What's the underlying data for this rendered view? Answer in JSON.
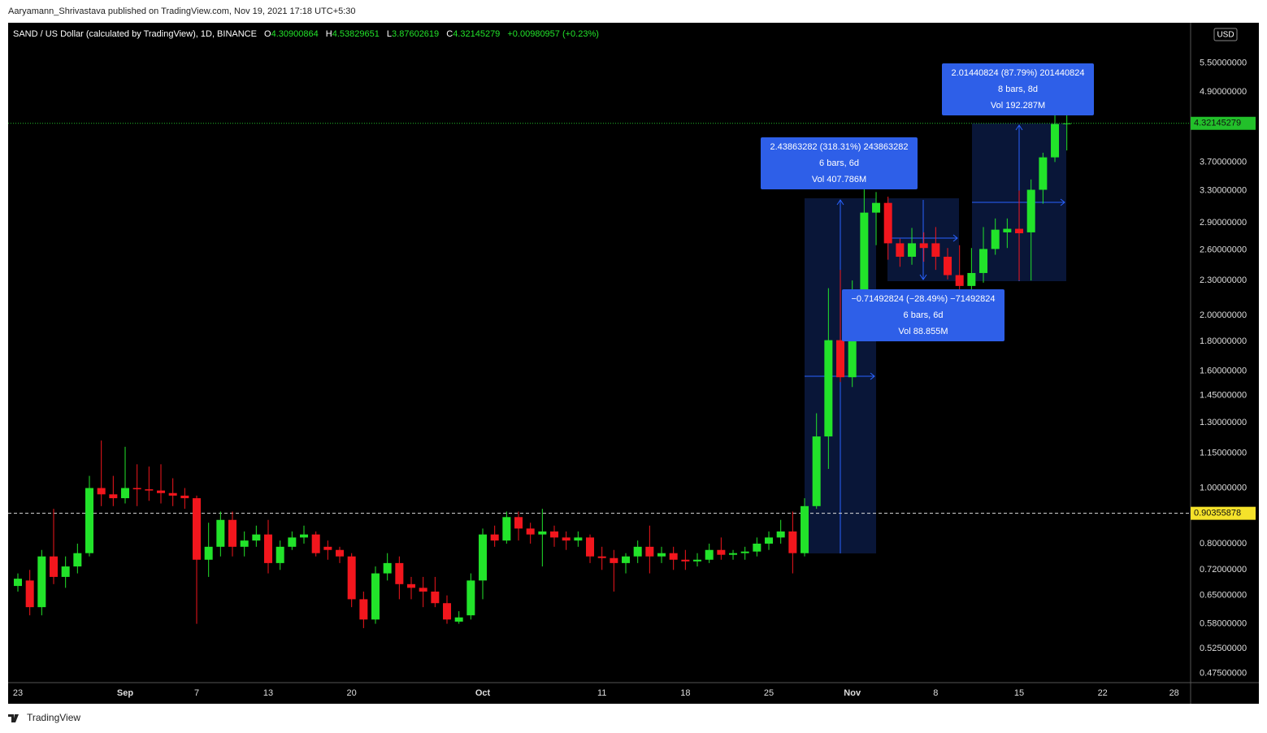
{
  "header": {
    "publisher": "Aaryamann_Shrivastava published on TradingView.com, Nov 19, 2021 17:18 UTC+5:30",
    "footer": "TradingView"
  },
  "chart_data": {
    "type": "candlestick",
    "title": "SAND / US Dollar (calculated by TradingView), 1D, BINANCE",
    "status_line": [
      {
        "label": "O",
        "value": "4.30900864"
      },
      {
        "label": "H",
        "value": "4.53829651"
      },
      {
        "label": "L",
        "value": "3.87602619"
      },
      {
        "label": "C",
        "value": "4.32145279"
      }
    ],
    "change": "+0.00980957 (+0.23%)",
    "currency": "USD",
    "categories": [
      "23",
      null,
      null,
      null,
      null,
      null,
      null,
      null,
      null,
      "Sep",
      null,
      null,
      null,
      null,
      null,
      "7",
      null,
      null,
      null,
      null,
      null,
      "13",
      null,
      null,
      null,
      null,
      null,
      null,
      "20",
      null,
      null,
      null,
      null,
      null,
      null,
      null,
      null,
      null,
      null,
      "Oct",
      null,
      null,
      null,
      null,
      null,
      null,
      null,
      null,
      null,
      "11",
      null,
      null,
      null,
      null,
      null,
      null,
      "18",
      null,
      null,
      null,
      null,
      null,
      null,
      "25",
      null,
      null,
      null,
      null,
      null,
      null,
      "Nov",
      null,
      null,
      null,
      null,
      null,
      null,
      "8",
      null,
      null,
      null,
      null,
      null,
      null,
      "15",
      null,
      null,
      null,
      null,
      null,
      null,
      "22",
      null,
      null,
      null,
      null,
      null,
      "28"
    ],
    "open": [
      0.675,
      0.69,
      0.62,
      0.76,
      0.7,
      0.73,
      0.77,
      1.0,
      0.975,
      0.96,
      1.0,
      0.995,
      0.99,
      0.98,
      0.97,
      0.96,
      0.75,
      0.79,
      0.88,
      0.79,
      0.81,
      0.83,
      0.74,
      0.79,
      0.82,
      0.83,
      0.79,
      0.78,
      0.76,
      0.64,
      0.59,
      0.71,
      0.74,
      0.68,
      0.67,
      0.66,
      0.63,
      0.585,
      0.6,
      0.69,
      0.83,
      0.81,
      0.89,
      0.85,
      0.83,
      0.84,
      0.82,
      0.81,
      0.82,
      0.76,
      0.755,
      0.74,
      0.76,
      0.79,
      0.76,
      0.77,
      0.75,
      0.745,
      0.75,
      0.78,
      0.765,
      0.77,
      0.775,
      0.8,
      0.82,
      0.84,
      0.77,
      0.93,
      1.23,
      1.81,
      1.56,
      2.12,
      3.02,
      3.14,
      2.67,
      2.53,
      2.67,
      2.67,
      2.53,
      2.35,
      2.25,
      2.37,
      2.61,
      2.79,
      2.83,
      2.79,
      3.31,
      3.77,
      4.30900864,
      null,
      null,
      null,
      null,
      null,
      null,
      null,
      null,
      null
    ],
    "high": [
      0.71,
      0.72,
      0.78,
      0.92,
      0.76,
      0.8,
      1.05,
      1.21,
      1.05,
      1.18,
      1.1,
      1.09,
      1.1,
      1.04,
      1.0,
      0.97,
      0.87,
      0.91,
      0.91,
      0.84,
      0.86,
      0.88,
      0.81,
      0.84,
      0.86,
      0.84,
      0.81,
      0.79,
      0.77,
      0.66,
      0.73,
      0.77,
      0.76,
      0.7,
      0.7,
      0.7,
      0.65,
      0.61,
      0.71,
      0.85,
      0.86,
      0.91,
      0.91,
      0.87,
      0.92,
      0.86,
      0.84,
      0.84,
      0.83,
      0.79,
      0.78,
      0.77,
      0.81,
      0.86,
      0.79,
      0.79,
      0.78,
      0.77,
      0.8,
      0.82,
      0.78,
      0.79,
      0.82,
      0.84,
      0.88,
      0.91,
      0.96,
      1.35,
      2.23,
      2.4,
      2.3,
      3.43,
      3.28,
      3.22,
      2.72,
      2.84,
      2.79,
      2.85,
      2.62,
      2.65,
      2.62,
      2.85,
      2.95,
      2.95,
      3.3,
      3.45,
      3.84,
      4.99,
      4.53829651,
      null,
      null,
      null,
      null,
      null,
      null,
      null,
      null,
      null
    ],
    "low": [
      0.66,
      0.6,
      0.6,
      0.68,
      0.67,
      0.71,
      0.76,
      0.93,
      0.93,
      0.94,
      0.93,
      0.95,
      0.94,
      0.93,
      0.92,
      0.58,
      0.7,
      0.76,
      0.76,
      0.76,
      0.79,
      0.71,
      0.72,
      0.78,
      0.8,
      0.76,
      0.75,
      0.74,
      0.62,
      0.57,
      0.58,
      0.69,
      0.64,
      0.64,
      0.62,
      0.62,
      0.58,
      0.58,
      0.59,
      0.64,
      0.79,
      0.8,
      0.81,
      0.8,
      0.73,
      0.79,
      0.78,
      0.79,
      0.74,
      0.72,
      0.66,
      0.71,
      0.74,
      0.71,
      0.74,
      0.72,
      0.72,
      0.73,
      0.74,
      0.75,
      0.75,
      0.75,
      0.76,
      0.78,
      0.8,
      0.71,
      0.76,
      0.92,
      1.08,
      1.53,
      1.5,
      2.0,
      2.65,
      2.5,
      2.43,
      2.45,
      2.48,
      2.4,
      2.31,
      1.98,
      2.2,
      2.28,
      2.55,
      2.62,
      2.3,
      2.3,
      3.13,
      3.7,
      3.87602619,
      null,
      null,
      null,
      null,
      null,
      null,
      null,
      null,
      null
    ],
    "close": [
      0.695,
      0.62,
      0.76,
      0.7,
      0.73,
      0.77,
      1.0,
      0.975,
      0.96,
      1.0,
      0.995,
      0.99,
      0.98,
      0.97,
      0.96,
      0.75,
      0.79,
      0.88,
      0.79,
      0.81,
      0.83,
      0.74,
      0.79,
      0.82,
      0.83,
      0.77,
      0.78,
      0.76,
      0.64,
      0.59,
      0.71,
      0.74,
      0.68,
      0.67,
      0.66,
      0.63,
      0.59,
      0.595,
      0.69,
      0.83,
      0.81,
      0.89,
      0.85,
      0.83,
      0.84,
      0.82,
      0.81,
      0.82,
      0.76,
      0.755,
      0.74,
      0.76,
      0.79,
      0.76,
      0.77,
      0.75,
      0.745,
      0.75,
      0.78,
      0.765,
      0.77,
      0.775,
      0.8,
      0.82,
      0.84,
      0.77,
      0.93,
      1.23,
      1.81,
      1.56,
      2.12,
      3.02,
      3.14,
      2.67,
      2.53,
      2.67,
      2.62,
      2.53,
      2.35,
      2.25,
      2.37,
      2.61,
      2.82,
      2.83,
      2.78,
      3.31,
      3.77,
      4.31,
      4.32145279,
      null,
      null,
      null,
      null,
      null,
      null,
      null,
      null,
      null
    ],
    "up_color": "#22e32a",
    "down_color": "#f2161d",
    "log_scale": true,
    "grid": false,
    "ylim": [
      0.458,
      6.47
    ],
    "yticks": [
      {
        "value": 5.5,
        "label": "5.50000000"
      },
      {
        "value": 4.9,
        "label": "4.90000000"
      },
      {
        "value": 3.7,
        "label": "3.70000000"
      },
      {
        "value": 3.3,
        "label": "3.30000000"
      },
      {
        "value": 2.9,
        "label": "2.90000000"
      },
      {
        "value": 2.6,
        "label": "2.60000000"
      },
      {
        "value": 2.3,
        "label": "2.30000000"
      },
      {
        "value": 2.0,
        "label": "2.00000000"
      },
      {
        "value": 1.8,
        "label": "1.80000000"
      },
      {
        "value": 1.6,
        "label": "1.60000000"
      },
      {
        "value": 1.45,
        "label": "1.45000000"
      },
      {
        "value": 1.3,
        "label": "1.30000000"
      },
      {
        "value": 1.15,
        "label": "1.15000000"
      },
      {
        "value": 1.0,
        "label": "1.00000000"
      },
      {
        "value": 0.8,
        "label": "0.80000000"
      },
      {
        "value": 0.72,
        "label": "0.72000000"
      },
      {
        "value": 0.65,
        "label": "0.65000000"
      },
      {
        "value": 0.58,
        "label": "0.58000000"
      },
      {
        "value": 0.525,
        "label": "0.52500000"
      },
      {
        "value": 0.475,
        "label": "0.47500000"
      }
    ],
    "price_lines": [
      {
        "value": 4.32145279,
        "label": "4.32145279",
        "color": "#22c02a"
      },
      {
        "value": 0.90355878,
        "label": "0.90355878",
        "color": "#f5e22a"
      }
    ],
    "annotations": [
      {
        "lines": [
          "2.43863282 (318.31%) 243863282",
          "6 bars, 6d",
          "Vol 407.786M"
        ]
      },
      {
        "lines": [
          "−0.71492824 (−28.49%) −71492824",
          "6 bars, 6d",
          "Vol 88.855M"
        ]
      },
      {
        "lines": [
          "2.01440824 (87.79%) 201440824",
          "8 bars, 8d",
          "Vol 192.287M"
        ]
      }
    ]
  }
}
